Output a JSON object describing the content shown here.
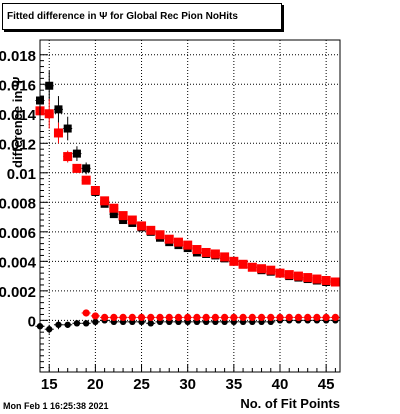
{
  "title": "Fitted difference in  Ψ  for Global Rec Pion NoHits",
  "timestamp": "Mon Feb  1 16:25:38 2021",
  "chart_data": {
    "type": "scatter",
    "title": "Fitted difference in  Ψ  for Global Rec Pion NoHits",
    "xlabel": "No. of Fit Points",
    "ylabel": "difference in Ψ",
    "xlim": [
      14,
      46.5
    ],
    "ylim": [
      -0.0035,
      0.019
    ],
    "grid": true,
    "x_ticks": [
      "15",
      "20",
      "25",
      "30",
      "35",
      "40",
      "45"
    ],
    "y_ticks": [
      {
        "value": 0,
        "label": "0"
      },
      {
        "value": 0.002,
        "label": "0.002"
      },
      {
        "value": 0.004,
        "label": "0.004"
      },
      {
        "value": 0.006,
        "label": "0.006"
      },
      {
        "value": 0.008,
        "label": "0.008"
      },
      {
        "value": 0.01,
        "label": "0.01"
      },
      {
        "value": 0.012,
        "label": "0.012"
      },
      {
        "value": 0.014,
        "label": "0.014"
      },
      {
        "value": 0.016,
        "label": "0.016"
      },
      {
        "value": 0.018,
        "label": "0.018"
      }
    ],
    "x": [
      14,
      15,
      16,
      17,
      18,
      19,
      20,
      21,
      22,
      23,
      24,
      25,
      26,
      27,
      28,
      29,
      30,
      31,
      32,
      33,
      34,
      35,
      36,
      37,
      38,
      39,
      40,
      41,
      42,
      43,
      44,
      45,
      46
    ],
    "series": [
      {
        "color": "#000000",
        "kind": "sigma",
        "values": [
          0.0149,
          0.0159,
          0.0143,
          0.013,
          0.0113,
          0.0103,
          0.0087,
          0.0079,
          0.0072,
          0.0068,
          0.0066,
          0.0063,
          0.006,
          0.0056,
          0.0053,
          0.0051,
          0.0049,
          0.0046,
          0.0045,
          0.0044,
          0.0042,
          0.004,
          0.0038,
          0.0036,
          0.0034,
          0.0033,
          0.0032,
          0.003,
          0.0029,
          0.0028,
          0.0027,
          0.0026,
          0.0026
        ],
        "errors": [
          0.0008,
          0.001,
          0.0009,
          0.0008,
          0.0005,
          0.0004,
          0.0003,
          0.0002,
          0.0002,
          0.0002,
          0.0001,
          0.0001,
          0.0001,
          0.0001,
          0.0001,
          0.0001,
          0.0001,
          0.0001,
          0.0001,
          0.0001,
          0.0001,
          0.0001,
          0.0001,
          0.0001,
          0.0001,
          0.0001,
          0.0001,
          0.0001,
          0.0001,
          0.0001,
          0.0001,
          0.0001,
          0.0001
        ]
      },
      {
        "color": "#000000",
        "kind": "mean",
        "values": [
          -0.0004,
          -0.0006,
          -0.0003,
          -0.0003,
          -0.0002,
          -0.0002,
          -0.0001,
          0,
          -0.0001,
          -0.0001,
          -0.0001,
          -0.0001,
          -0.0002,
          -0.0001,
          -0.0001,
          -0.0001,
          -0.0001,
          -0.0001,
          -0.0001,
          -0.0001,
          -0.0001,
          -0.0001,
          -0.0001,
          -0.0001,
          -0.0001,
          -0.0001,
          0,
          0,
          0,
          0,
          0,
          0,
          0
        ],
        "errors": [
          0.0003,
          0.0003,
          0.0003,
          0.0002,
          0.0002,
          0.0002,
          0.0001,
          0.0001,
          0.0001,
          0.0001,
          0.0001,
          0.0001,
          0.0001,
          0.0001,
          0.0001,
          0.0001,
          0.0001,
          0.0001,
          0.0001,
          0.0001,
          0.0001,
          0.0001,
          0.0001,
          0.0001,
          0.0001,
          0.0001,
          0.0001,
          0.0001,
          0.0001,
          0.0001,
          0.0001,
          0.0001,
          0.0001
        ]
      },
      {
        "color": "#ff0000",
        "kind": "sigma",
        "values": [
          0.0142,
          0.014,
          0.0127,
          0.0111,
          0.0103,
          0.0095,
          0.0088,
          0.0081,
          0.0076,
          0.0071,
          0.0068,
          0.0064,
          0.0061,
          0.0058,
          0.0055,
          0.0053,
          0.0051,
          0.0048,
          0.0046,
          0.0045,
          0.0043,
          0.004,
          0.0038,
          0.0036,
          0.0035,
          0.0034,
          0.0032,
          0.0031,
          0.003,
          0.0029,
          0.0028,
          0.0027,
          0.0026
        ],
        "errors": [
          0.0012,
          0.001,
          0.0007,
          0.0004,
          0.0003,
          0.0002,
          0.0002,
          0.0001,
          0.0001,
          0.0001,
          0.0001,
          0.0001,
          0.0001,
          0.0001,
          0.0001,
          0.0001,
          0.0001,
          0.0001,
          0.0001,
          0.0001,
          0.0001,
          0.0001,
          0.0001,
          0.0001,
          0.0001,
          0.0001,
          0.0001,
          0.0001,
          0.0001,
          0.0001,
          0.0001,
          0.0001,
          0.0001
        ]
      },
      {
        "color": "#ff0000",
        "kind": "mean",
        "values": [
          null,
          null,
          null,
          null,
          null,
          0.0005,
          0.0003,
          0.0002,
          0.0002,
          0.0002,
          0.0002,
          0.0002,
          0.0002,
          0.0002,
          0.0002,
          0.0002,
          0.0002,
          0.0002,
          0.0002,
          0.0002,
          0.0002,
          0.0002,
          0.0002,
          0.0002,
          0.0002,
          0.0002,
          0.0002,
          0.0002,
          0.0002,
          0.0002,
          0.0002,
          0.0002,
          0.0002
        ],
        "errors": [
          0,
          0,
          0,
          0,
          0,
          0.0001,
          0.0001,
          0.0001,
          0.0001,
          0.0001,
          0.0001,
          0.0001,
          0.0001,
          0.0001,
          0.0001,
          0.0001,
          0.0001,
          0.0001,
          0.0001,
          0.0001,
          0.0001,
          0.0001,
          0.0001,
          0.0001,
          0.0001,
          0.0001,
          0.0001,
          0.0001,
          0.0001,
          0.0001,
          0.0001,
          0.0001,
          0.0001
        ]
      }
    ]
  }
}
